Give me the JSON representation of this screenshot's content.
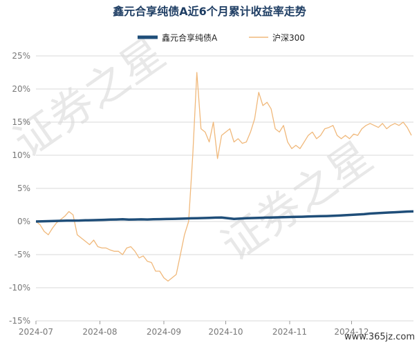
{
  "chart_data": {
    "type": "line",
    "title": "鑫元合享纯债A近6个月累计收益率走势",
    "ylim": [
      -15,
      25
    ],
    "y_ticks": [
      "25%",
      "20%",
      "15%",
      "10%",
      "5%",
      "0%",
      "-5%",
      "-10%",
      "-15%"
    ],
    "y_tick_values": [
      25,
      20,
      15,
      10,
      5,
      0,
      -5,
      -10,
      -15
    ],
    "x_ticks": [
      "2024-07",
      "2024-08",
      "2024-09",
      "2024-10",
      "2024-11",
      "2024-12"
    ],
    "legend_position": "top-center",
    "grid": true,
    "series": [
      {
        "name": "鑫元合享纯债A",
        "color": "#1f4e79",
        "x": [
          0,
          3,
          6,
          9,
          12,
          15,
          18,
          21,
          24,
          27,
          30,
          33,
          36,
          39,
          42,
          45,
          48,
          51,
          54,
          57,
          60,
          63,
          66,
          69,
          72,
          75,
          78,
          81,
          84,
          87,
          90,
          93,
          96,
          99,
          102,
          105,
          108,
          111,
          114,
          117,
          120,
          123,
          126,
          129,
          132,
          135,
          138,
          141,
          144,
          147,
          150,
          153,
          156,
          159,
          162,
          165,
          168,
          171,
          174,
          177,
          180,
          183
        ],
        "y": [
          0.0,
          0.02,
          0.05,
          0.08,
          0.1,
          0.12,
          0.14,
          0.15,
          0.18,
          0.2,
          0.22,
          0.25,
          0.28,
          0.3,
          0.33,
          0.28,
          0.3,
          0.32,
          0.3,
          0.33,
          0.35,
          0.38,
          0.4,
          0.42,
          0.45,
          0.48,
          0.5,
          0.52,
          0.55,
          0.58,
          0.6,
          0.5,
          0.4,
          0.45,
          0.5,
          0.52,
          0.55,
          0.58,
          0.6,
          0.62,
          0.65,
          0.68,
          0.7,
          0.72,
          0.75,
          0.78,
          0.8,
          0.82,
          0.85,
          0.9,
          0.95,
          1.0,
          1.05,
          1.1,
          1.2,
          1.25,
          1.3,
          1.35,
          1.4,
          1.45,
          1.5,
          1.52
        ]
      },
      {
        "name": "沪深300",
        "color": "#f0b87a",
        "x": [
          0,
          2,
          4,
          6,
          8,
          10,
          12,
          14,
          16,
          18,
          20,
          22,
          24,
          26,
          28,
          30,
          32,
          34,
          36,
          38,
          40,
          42,
          44,
          46,
          48,
          50,
          52,
          54,
          56,
          58,
          60,
          62,
          64,
          66,
          68,
          70,
          72,
          74,
          76,
          78,
          80,
          82,
          84,
          86,
          88,
          90,
          92,
          94,
          96,
          98,
          100,
          102,
          104,
          106,
          108,
          110,
          112,
          114,
          116,
          118,
          120,
          122,
          124,
          126,
          128,
          130,
          132,
          134,
          136,
          138,
          140,
          142,
          144,
          146,
          148,
          150,
          152,
          154,
          156,
          158,
          160,
          162,
          164,
          166,
          168,
          170,
          172,
          174,
          176,
          178,
          180,
          182
        ],
        "y": [
          0.0,
          -0.5,
          -1.5,
          -2.0,
          -1.0,
          -0.2,
          0.3,
          0.8,
          1.5,
          1.0,
          -2.0,
          -2.5,
          -3.0,
          -3.5,
          -2.8,
          -3.8,
          -4.0,
          -4.0,
          -4.3,
          -4.5,
          -4.5,
          -5.0,
          -4.0,
          -3.8,
          -4.5,
          -5.5,
          -5.2,
          -6.0,
          -6.2,
          -7.5,
          -7.5,
          -8.5,
          -9.0,
          -8.5,
          -8.0,
          -5.0,
          -2.0,
          0.0,
          10.0,
          22.5,
          14.0,
          13.5,
          12.0,
          15.0,
          9.5,
          13.0,
          13.5,
          14.0,
          12.0,
          12.5,
          11.8,
          12.0,
          13.5,
          15.5,
          19.5,
          17.5,
          18.0,
          17.0,
          14.0,
          13.5,
          14.5,
          12.0,
          11.0,
          11.5,
          11.0,
          12.0,
          13.0,
          13.5,
          12.5,
          13.0,
          14.0,
          14.2,
          14.5,
          13.0,
          12.5,
          13.0,
          12.5,
          13.2,
          13.0,
          14.0,
          14.5,
          14.8,
          14.5,
          14.2,
          14.8,
          14.0,
          14.5,
          14.8,
          14.5,
          15.0,
          14.2,
          13.0
        ]
      }
    ]
  },
  "watermark": {
    "text_cn": "证券之星",
    "site": "www.365jz.com"
  }
}
